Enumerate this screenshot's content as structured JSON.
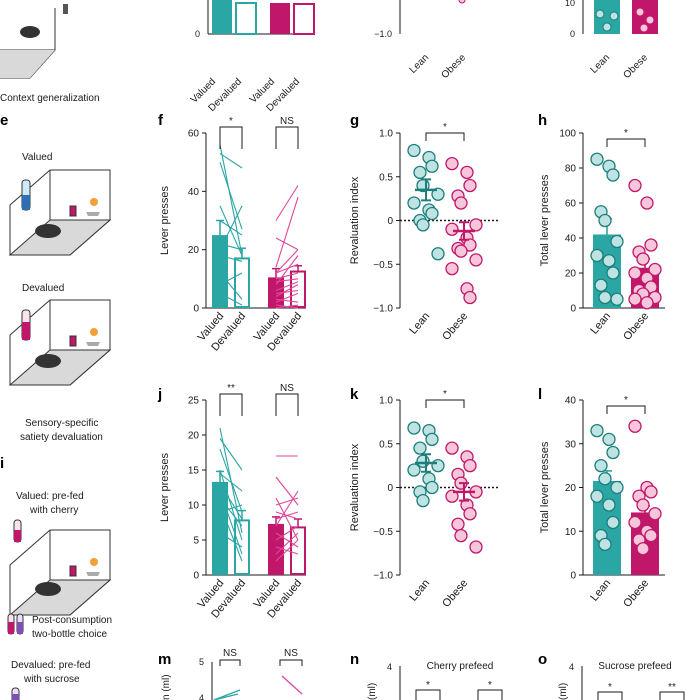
{
  "colors": {
    "teal": "#2aa6a4",
    "magenta": "#c1176b",
    "teal_light": "#bfe3e2",
    "pink_light": "#f7c6db",
    "pink_line": "#e0479a",
    "axis": "#1a1a1a"
  },
  "panel_labels": {
    "e": "e",
    "f": "f",
    "g": "g",
    "h": "h",
    "i": "i",
    "j": "j",
    "k": "k",
    "l": "l",
    "m": "m",
    "n": "n",
    "o": "o"
  },
  "left_text": {
    "context_generalization": "Context generalization",
    "valued": "Valued",
    "devalued": "Devalued",
    "sensory_line1": "Sensory-specific",
    "sensory_line2": "satiety devaluation",
    "valued_prefed_line1": "Valued: pre-fed",
    "valued_prefed_line2": "with cherry",
    "post_line1": "Post-consumption",
    "post_line2": "two-bottle choice",
    "devalued_prefed_line1": "Devalued: pre-fed",
    "devalued_prefed_line2": "with sucrose"
  },
  "icons": [
    "mouse-icon",
    "operant-box-icon",
    "bottle-icon",
    "sugar-pellet-icon"
  ],
  "chart_data": [
    {
      "id": "top-row-partial",
      "type": "bar",
      "categories": [
        "Valued",
        "Devalued",
        "Valued",
        "Devalued"
      ],
      "yticks": [
        "0"
      ],
      "note": "partially visible panel"
    },
    {
      "id": "top-row-index-partial",
      "type": "scatter",
      "categories": [
        "Lean",
        "Obese"
      ],
      "yticks": [
        "−1.0"
      ]
    },
    {
      "id": "top-row-total-partial",
      "type": "bar",
      "categories": [
        "Lean",
        "Obese"
      ],
      "yticks": [
        "10",
        "0"
      ]
    },
    {
      "id": "f",
      "type": "bar",
      "ylabel": "Lever presses",
      "ylim": [
        0,
        60
      ],
      "yticks": [
        "0",
        "20",
        "40",
        "60"
      ],
      "categories": [
        "Valued",
        "Devalued",
        "Valued",
        "Devalued"
      ],
      "values": [
        25,
        17,
        10.5,
        12.5
      ],
      "errors": [
        5,
        3.5,
        3,
        2
      ],
      "significance": [
        "*",
        "NS"
      ],
      "paired_lines": {
        "lean": [
          [
            56,
            18
          ],
          [
            53,
            48
          ],
          [
            50,
            27
          ],
          [
            35,
            18
          ],
          [
            30,
            25
          ],
          [
            22,
            20
          ],
          [
            20,
            35
          ],
          [
            18,
            16
          ],
          [
            12,
            3
          ],
          [
            8,
            12
          ],
          [
            5,
            1
          ]
        ],
        "obese": [
          [
            30,
            42
          ],
          [
            24,
            20
          ],
          [
            14,
            38
          ],
          [
            12,
            20
          ],
          [
            12,
            15
          ],
          [
            10,
            12
          ],
          [
            9,
            10
          ],
          [
            8,
            18
          ],
          [
            6,
            9
          ],
          [
            5,
            6
          ],
          [
            4,
            8
          ],
          [
            3,
            2
          ],
          [
            2,
            5
          ],
          [
            1,
            0
          ],
          [
            0,
            1
          ]
        ]
      }
    },
    {
      "id": "g",
      "type": "scatter",
      "ylabel": "Revaluation index",
      "ylim": [
        -1.0,
        1.0
      ],
      "yticks": [
        "1.0",
        "0.5",
        "0",
        "−0.5",
        "−1.0"
      ],
      "categories": [
        "Lean",
        "Obese"
      ],
      "means": [
        0.35,
        -0.12
      ],
      "sems": [
        0.12,
        0.1
      ],
      "significance": [
        "*"
      ],
      "points": {
        "lean": [
          0.8,
          0.72,
          0.62,
          0.55,
          0.4,
          0.3,
          0.2,
          0.12,
          0.08,
          0.0,
          -0.05,
          -0.38
        ],
        "obese": [
          0.65,
          0.55,
          0.4,
          0.28,
          0.2,
          -0.05,
          -0.1,
          -0.2,
          -0.28,
          -0.32,
          -0.35,
          -0.45,
          -0.55,
          -0.78,
          -0.88
        ]
      }
    },
    {
      "id": "h",
      "type": "bar",
      "ylabel": "Total lever presses",
      "ylim": [
        0,
        100
      ],
      "yticks": [
        "0",
        "20",
        "40",
        "60",
        "80",
        "100"
      ],
      "categories": [
        "Lean",
        "Obese"
      ],
      "values": [
        42,
        23
      ],
      "errors": [
        9,
        5
      ],
      "significance": [
        "*"
      ],
      "points": {
        "lean": [
          85,
          81,
          76,
          55,
          50,
          38,
          30,
          27,
          20,
          13,
          6,
          5
        ],
        "obese": [
          70,
          60,
          36,
          32,
          28,
          22,
          20,
          17,
          12,
          10,
          8,
          6,
          5,
          3
        ]
      }
    },
    {
      "id": "j",
      "type": "bar",
      "ylabel": "Lever presses",
      "ylim": [
        0,
        25
      ],
      "yticks": [
        "0",
        "5",
        "10",
        "15",
        "20",
        "25"
      ],
      "categories": [
        "Valued",
        "Devalued",
        "Valued",
        "Devalued"
      ],
      "values": [
        13.3,
        7.8,
        7.3,
        6.8
      ],
      "errors": [
        1.5,
        1.4,
        1.0,
        1.2
      ],
      "significance": [
        "**",
        "NS"
      ],
      "paired_lines": {
        "lean": [
          [
            21,
            6
          ],
          [
            19.5,
            15
          ],
          [
            18,
            9
          ],
          [
            15,
            5
          ],
          [
            14.5,
            12
          ],
          [
            13,
            8
          ],
          [
            12,
            3
          ],
          [
            11,
            7
          ],
          [
            10,
            2
          ],
          [
            9,
            10
          ],
          [
            6,
            4
          ]
        ],
        "obese": [
          [
            17,
            17
          ],
          [
            14,
            10
          ],
          [
            11,
            5
          ],
          [
            10,
            11
          ],
          [
            9,
            8
          ],
          [
            8,
            9
          ],
          [
            7,
            12
          ],
          [
            6,
            4
          ],
          [
            5,
            7
          ],
          [
            4,
            3
          ],
          [
            3,
            6
          ],
          [
            2,
            5
          ]
        ]
      }
    },
    {
      "id": "k",
      "type": "scatter",
      "ylabel": "Revaluation index",
      "ylim": [
        -1.0,
        1.0
      ],
      "yticks": [
        "1.0",
        "0.5",
        "0",
        "−0.5",
        "−1.0"
      ],
      "categories": [
        "Lean",
        "Obese"
      ],
      "means": [
        0.28,
        -0.05
      ],
      "sems": [
        0.1,
        0.1
      ],
      "significance": [
        "*"
      ],
      "points": {
        "lean": [
          0.68,
          0.65,
          0.55,
          0.45,
          0.3,
          0.25,
          0.2,
          0.1,
          0.0,
          -0.05,
          -0.15
        ],
        "obese": [
          0.45,
          0.35,
          0.25,
          0.15,
          0.05,
          -0.05,
          -0.1,
          -0.2,
          -0.3,
          -0.42,
          -0.55,
          -0.68
        ]
      }
    },
    {
      "id": "l",
      "type": "bar",
      "ylabel": "Total lever presses",
      "ylim": [
        0,
        40
      ],
      "yticks": [
        "0",
        "10",
        "20",
        "30",
        "40"
      ],
      "categories": [
        "Lean",
        "Obese"
      ],
      "values": [
        21.5,
        14.3
      ],
      "errors": [
        2.3,
        1.5
      ],
      "significance": [
        "*"
      ],
      "points": {
        "lean": [
          33,
          31,
          28,
          25,
          22,
          20,
          18,
          16,
          12,
          9,
          7
        ],
        "obese": [
          34,
          20,
          19,
          18,
          16,
          14,
          12,
          10,
          9,
          8,
          6
        ]
      }
    },
    {
      "id": "m",
      "type": "line",
      "ylabel": "n (ml)",
      "yticks": [
        "5",
        "4"
      ],
      "significance": [
        "NS",
        "NS"
      ]
    },
    {
      "id": "n",
      "type": "bar",
      "title": "Cherry prefeed",
      "ylabel": "(ml)",
      "yticks": [
        "4"
      ],
      "significance": [
        "*",
        "*"
      ]
    },
    {
      "id": "o",
      "type": "bar",
      "title": "Sucrose prefeed",
      "ylabel": "(ml)",
      "yticks": [
        "4"
      ],
      "significance": [
        "*",
        "**"
      ]
    }
  ]
}
